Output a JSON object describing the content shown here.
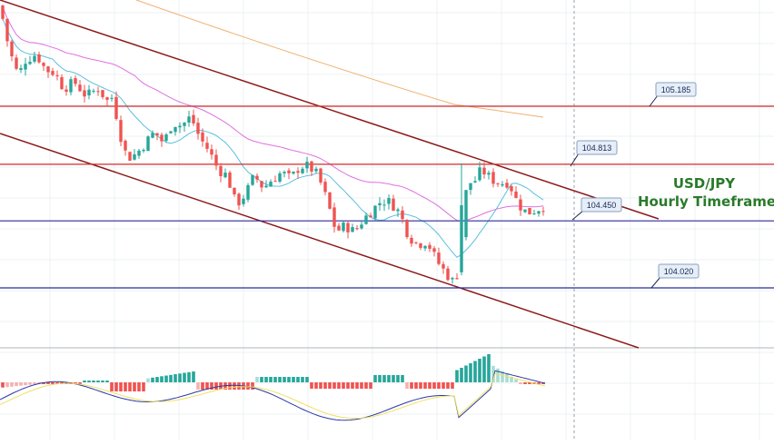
{
  "chart_data": {
    "type": "candlestick",
    "symbol": "USD/JPY",
    "title_line1": "USD/JPY",
    "title_line2": "Hourly Timeframe",
    "ylim": [
      103.62,
      105.88
    ],
    "levels": [
      {
        "value": 105.185,
        "label": "105.185",
        "color": "#d42a2a",
        "kind": "resistance"
      },
      {
        "value": 104.813,
        "label": "104.813",
        "color": "#d42a2a",
        "kind": "resistance"
      },
      {
        "value": 104.45,
        "label": "104.450",
        "color": "#2a2a9a",
        "kind": "support"
      },
      {
        "value": 104.02,
        "label": "104.020",
        "color": "#2a2a9a",
        "kind": "support"
      }
    ],
    "channel_color": "#8b1a1a",
    "price_colors": {
      "up": "#26a69a",
      "down": "#ef5350"
    },
    "moving_average_colors": {
      "ma_fast": "#5bc0de",
      "ma_mid": "#e070e0",
      "ma_slow": "#f0b070"
    },
    "oscillator": {
      "colors": {
        "hist_up_strong": "#26a69a",
        "hist_up_weak": "#a8ddd5",
        "hist_down_strong": "#ef5350",
        "hist_down_weak": "#f5b0b0",
        "macd": "#2a3aa8",
        "signal": "#f0e060"
      }
    },
    "grid": true
  }
}
